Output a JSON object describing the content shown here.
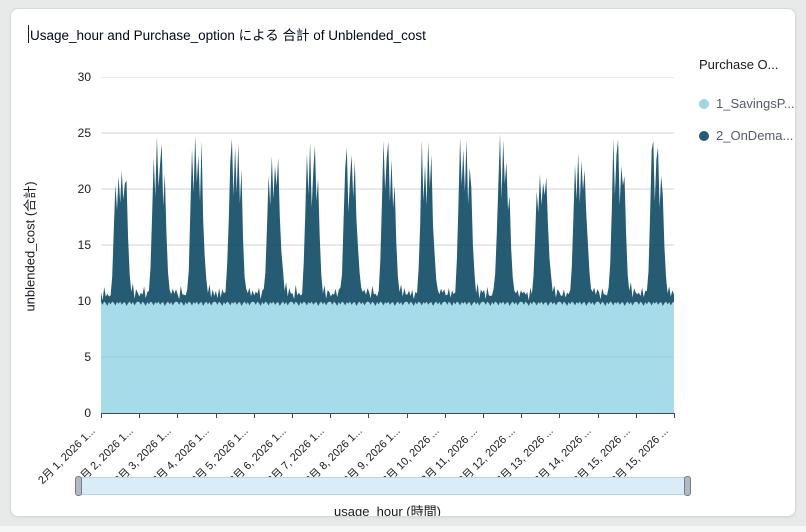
{
  "header": {
    "title": "Usage_hour and Purchase_option による 合計 of Unblended_cost"
  },
  "legend": {
    "title": "Purchase O...",
    "items": [
      {
        "label": "1_SavingsP...",
        "color": "#9fd6e6"
      },
      {
        "label": "2_OnDema...",
        "color": "#265b74"
      }
    ]
  },
  "x_axis": {
    "title": "usage_hour (時間)"
  },
  "y_axis": {
    "title": "unblended_cost (合計)"
  },
  "colors": {
    "savings_area": "#a6dbe9",
    "ondemand_area": "#265b74",
    "gridline": "#dfe1e3",
    "gridline_overlay": "rgba(22,25,31,0.07)",
    "axis_line": "#414b57"
  },
  "chart_data": {
    "type": "area",
    "stacked": true,
    "title": "Usage_hour and Purchase_option による 合計 of Unblended_cost",
    "xlabel": "usage_hour (時間)",
    "ylabel": "unblended_cost (合計)",
    "ylim": [
      0,
      30
    ],
    "y_ticks": [
      0,
      5,
      10,
      15,
      20,
      25,
      30
    ],
    "grid": true,
    "legend_position": "right",
    "x_unit": "hour",
    "days": 15,
    "hours_per_day": 24,
    "x_tick_labels": [
      "2月 1, 2026 1...",
      "2月 2, 2026 1...",
      "2月 3, 2026 1...",
      "2月 4, 2026 1...",
      "2月 5, 2026 1...",
      "2月 6, 2026 1...",
      "2月 7, 2026 1...",
      "2月 8, 2026 1...",
      "2月 9, 2026 1...",
      "2月 10, 2026 ...",
      "2月 11, 2026 ...",
      "2月 12, 2026 ...",
      "2月 13, 2026 ...",
      "2月 14, 2026 ...",
      "2月 15, 2026 ...",
      "2月 15, 2026 ..."
    ],
    "series": [
      {
        "name": "1_SavingsP...",
        "color": "#a6dbe9",
        "base_value": 10,
        "jitter_24h": [
          0.1,
          0.35,
          0.05,
          0.2,
          0.45,
          0.1,
          0.3,
          0.05,
          0.15,
          0.4,
          0.1,
          0.25,
          0.05,
          0.35,
          0.15,
          0.1,
          0.45,
          0.2,
          0.05,
          0.3,
          0.1,
          0.4,
          0.15,
          0.05
        ]
      },
      {
        "name": "2_OnDema...",
        "color": "#265b74",
        "hourly_values_by_day": [
          [
            0.9,
            0.4,
            1.3,
            0.6,
            1.1,
            0.5,
            0.8,
            2.2,
            6.5,
            10.8,
            8.2,
            11.4,
            8.8,
            12.0,
            9.2,
            10.6,
            11.2,
            5.8,
            2.4,
            1.1,
            1.7,
            0.6,
            1.2,
            0.8
          ],
          [
            0.5,
            1.1,
            0.6,
            1.5,
            0.7,
            0.9,
            1.2,
            3.0,
            7.8,
            13.2,
            9.4,
            14.9,
            10.2,
            12.6,
            14.2,
            8.6,
            11.8,
            6.4,
            2.6,
            1.3,
            0.7,
            1.5,
            0.8,
            1.1
          ],
          [
            0.7,
            0.5,
            1.4,
            0.8,
            1.0,
            0.6,
            1.3,
            2.8,
            8.4,
            14.0,
            9.8,
            15.0,
            10.6,
            13.4,
            9.0,
            14.4,
            7.6,
            4.2,
            2.0,
            1.0,
            1.6,
            0.7,
            1.2,
            0.5
          ],
          [
            1.0,
            0.6,
            1.2,
            0.5,
            1.5,
            0.8,
            1.1,
            3.2,
            7.2,
            12.8,
            14.6,
            9.6,
            13.8,
            10.0,
            14.2,
            8.8,
            12.2,
            5.6,
            2.2,
            1.4,
            0.8,
            1.6,
            0.6,
            1.0
          ],
          [
            0.6,
            1.2,
            0.7,
            1.4,
            0.6,
            1.0,
            1.4,
            2.6,
            6.8,
            11.6,
            8.6,
            13.2,
            9.2,
            12.4,
            10.4,
            12.9,
            8.0,
            4.6,
            2.8,
            1.2,
            1.8,
            0.8,
            1.3,
            0.7
          ],
          [
            0.8,
            0.5,
            1.5,
            0.7,
            1.2,
            0.6,
            0.9,
            3.4,
            8.0,
            13.6,
            9.6,
            14.4,
            8.4,
            12.0,
            14.0,
            9.0,
            11.4,
            6.0,
            2.4,
            1.0,
            1.5,
            0.6,
            1.1,
            0.9
          ],
          [
            0.5,
            1.0,
            0.6,
            1.3,
            0.8,
            1.1,
            1.5,
            2.4,
            7.4,
            12.2,
            13.8,
            8.2,
            11.0,
            13.4,
            9.4,
            12.6,
            7.8,
            5.0,
            2.6,
            1.5,
            0.9,
            1.4,
            0.7,
            1.2
          ],
          [
            0.9,
            0.6,
            1.4,
            0.8,
            1.1,
            0.5,
            1.2,
            3.6,
            8.8,
            14.7,
            10.0,
            13.0,
            14.3,
            9.2,
            12.8,
            8.4,
            10.8,
            5.4,
            2.2,
            1.1,
            1.6,
            0.8,
            1.3,
            0.6
          ],
          [
            0.7,
            1.3,
            0.5,
            1.2,
            0.6,
            0.9,
            1.0,
            2.9,
            7.0,
            14.8,
            9.0,
            12.4,
            8.6,
            14.6,
            10.2,
            13.2,
            7.2,
            4.4,
            2.0,
            1.3,
            0.7,
            1.5,
            0.9,
            1.1
          ],
          [
            0.6,
            0.9,
            1.2,
            0.5,
            1.4,
            0.7,
            1.1,
            3.8,
            9.0,
            15.0,
            10.4,
            13.8,
            9.8,
            14.8,
            8.8,
            12.0,
            10.6,
            5.2,
            2.5,
            1.0,
            1.7,
            0.6,
            1.2,
            0.8
          ],
          [
            1.1,
            0.5,
            1.3,
            0.7,
            0.9,
            0.6,
            1.4,
            2.5,
            6.2,
            11.0,
            15.0,
            9.4,
            14.4,
            10.8,
            12.6,
            8.2,
            9.8,
            4.8,
            2.1,
            1.2,
            0.8,
            1.4,
            0.5,
            1.0
          ],
          [
            0.8,
            1.2,
            0.6,
            1.0,
            0.5,
            1.3,
            0.9,
            2.3,
            5.8,
            10.2,
            8.0,
            11.6,
            8.6,
            10.9,
            9.6,
            11.2,
            7.4,
            4.0,
            2.3,
            1.1,
            1.5,
            0.7,
            1.2,
            0.9
          ],
          [
            0.6,
            0.8,
            1.1,
            0.5,
            1.2,
            0.7,
            1.3,
            3.1,
            7.6,
            12.6,
            9.2,
            13.5,
            8.8,
            12.9,
            10.0,
            11.8,
            8.4,
            5.5,
            2.7,
            1.4,
            0.9,
            1.6,
            0.7,
            1.1
          ],
          [
            0.9,
            0.5,
            1.2,
            0.8,
            1.0,
            0.6,
            1.5,
            3.3,
            8.2,
            14.9,
            9.6,
            13.3,
            14.5,
            8.9,
            12.2,
            10.4,
            11.6,
            6.2,
            2.4,
            1.2,
            1.8,
            0.7,
            1.3,
            0.8
          ],
          [
            0.7,
            1.1,
            0.5,
            1.4,
            0.8,
            1.0,
            1.2,
            2.7,
            7.9,
            13.9,
            14.4,
            9.1,
            12.7,
            14.1,
            8.5,
            11.3,
            9.9,
            5.1,
            2.2,
            1.0,
            1.4,
            0.8,
            1.1,
            0.6
          ]
        ]
      }
    ]
  }
}
